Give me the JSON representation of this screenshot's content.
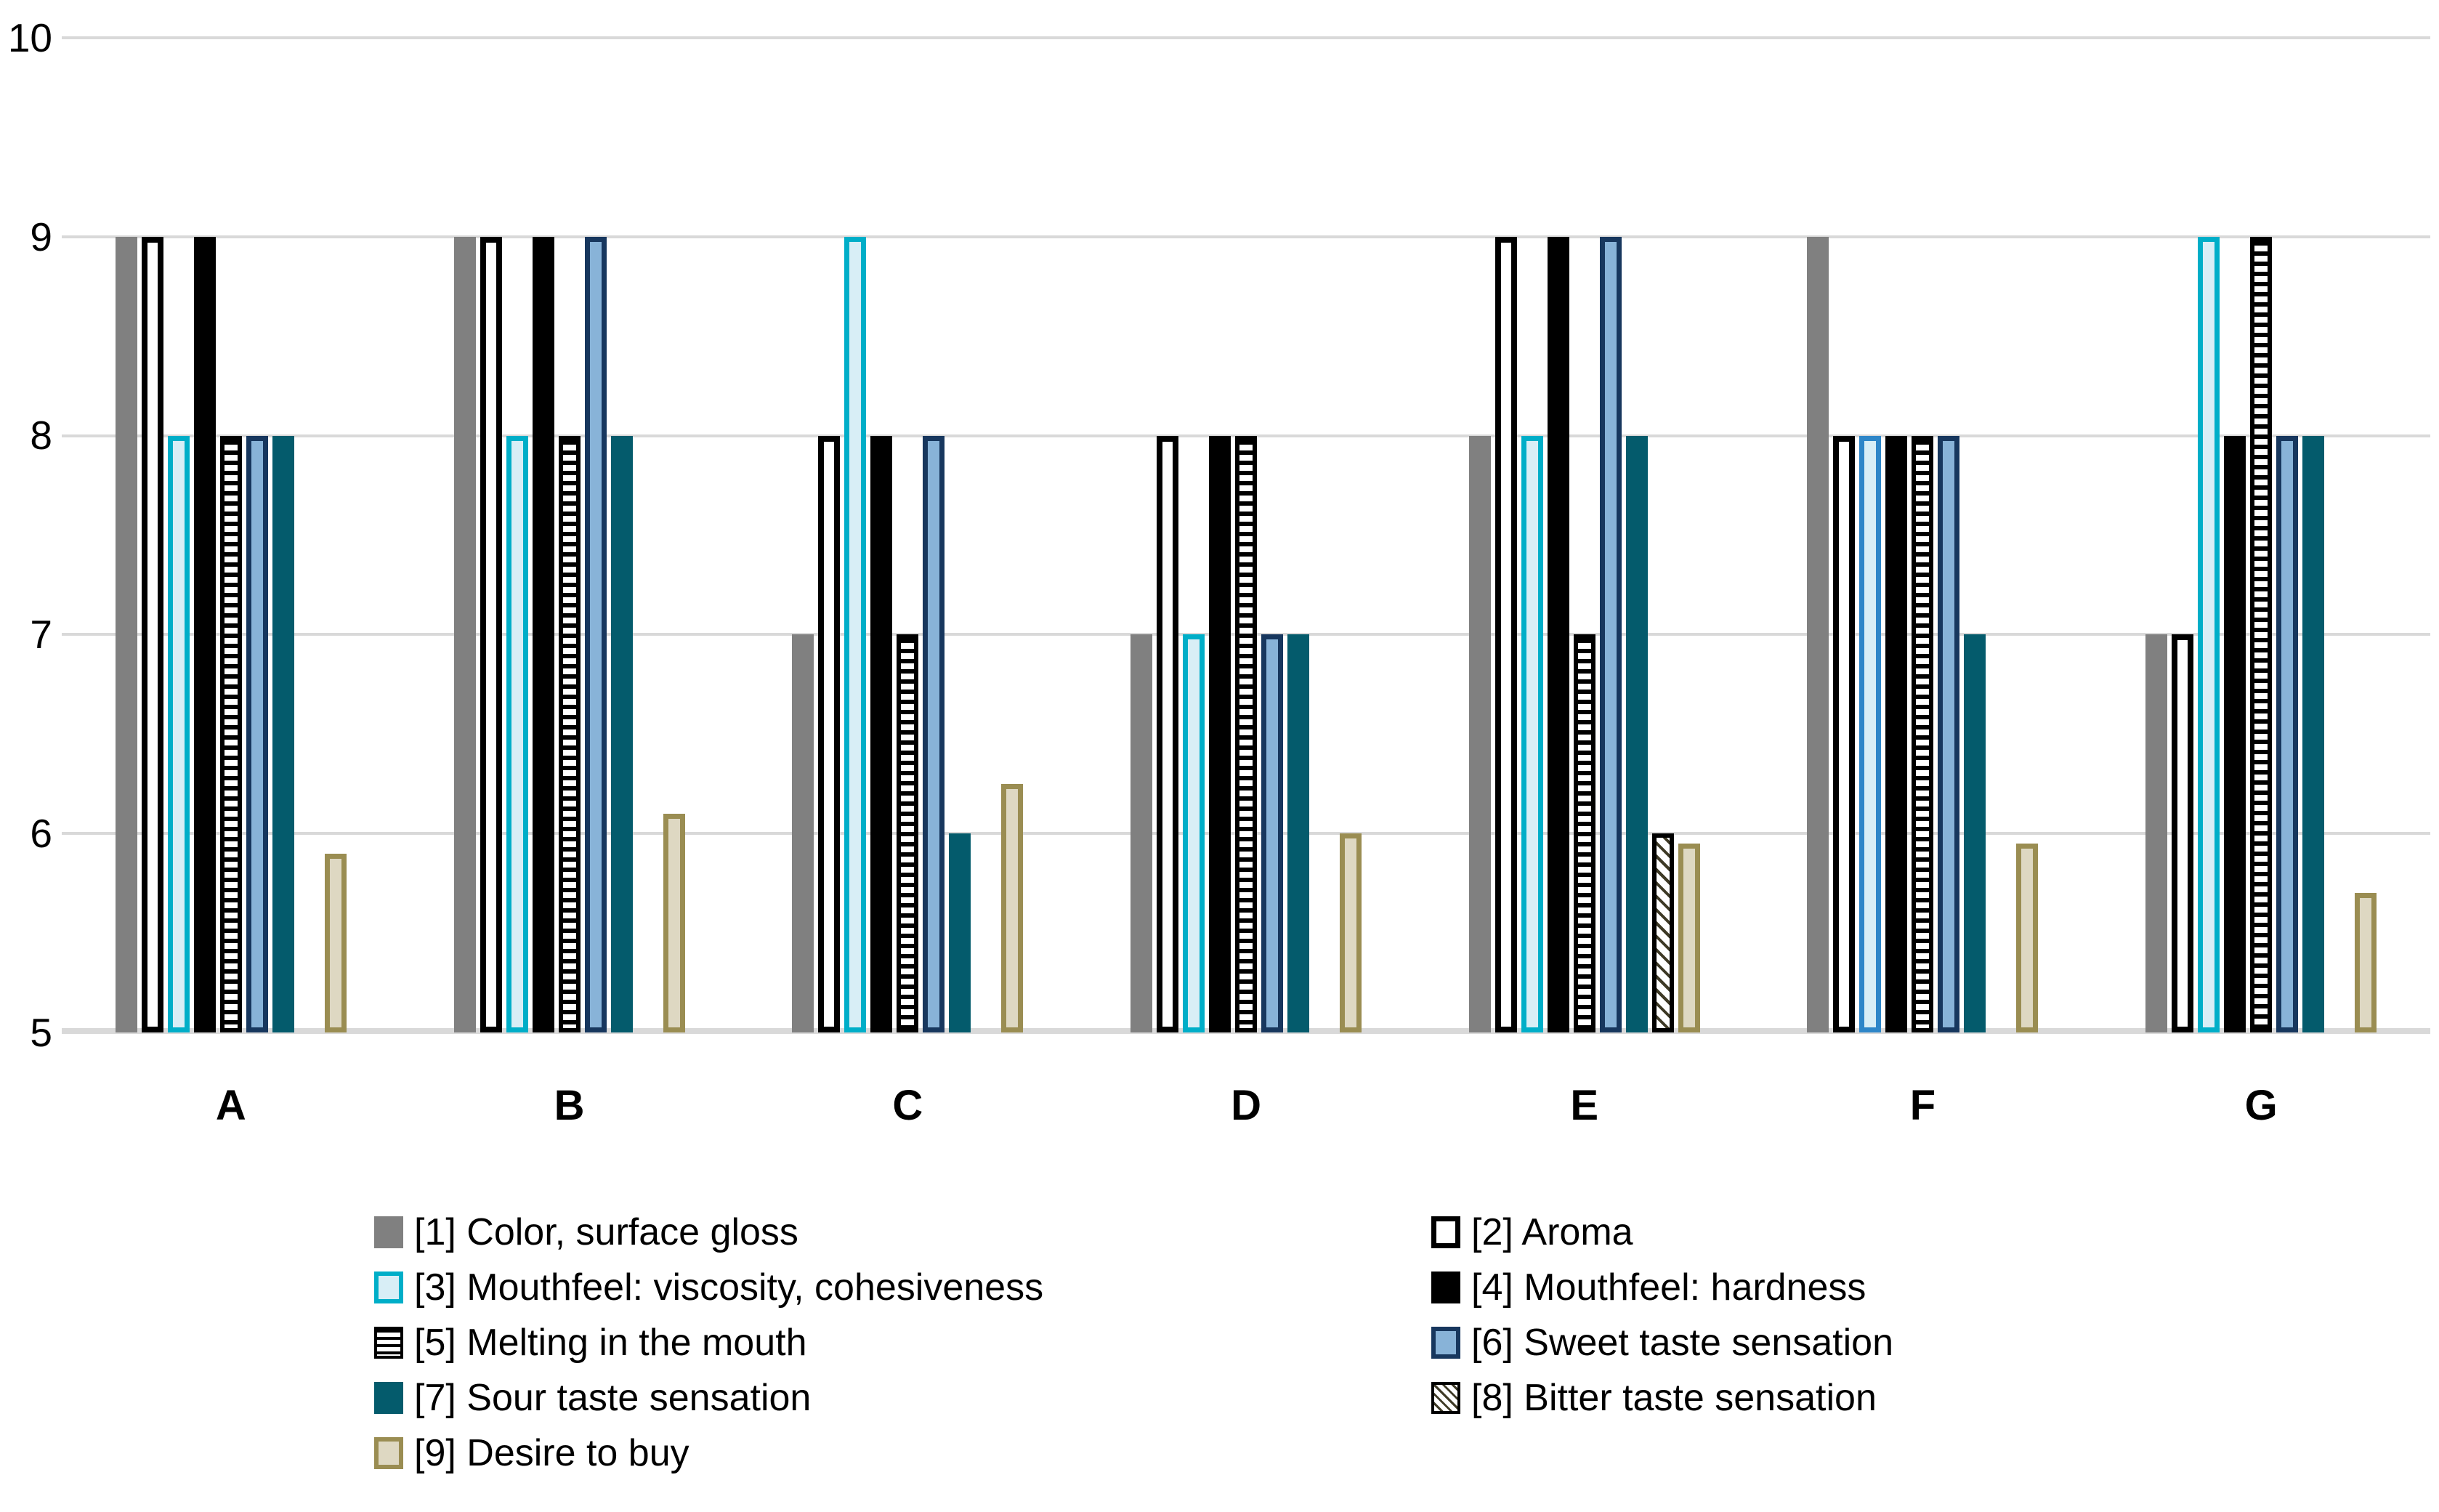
{
  "chart_data": {
    "type": "bar",
    "categories": [
      "A",
      "B",
      "C",
      "D",
      "E",
      "F",
      "G"
    ],
    "series": [
      {
        "key": "1",
        "label": "[1] Color, surface gloss",
        "style": "gray",
        "values": [
          9,
          9,
          7,
          7,
          8,
          9,
          7
        ]
      },
      {
        "key": "2",
        "label": "[2] Aroma",
        "style": "white-outline",
        "values": [
          9,
          9,
          8,
          8,
          9,
          8,
          7
        ]
      },
      {
        "key": "3",
        "label": "[3] Mouthfeel: viscosity, cohesiveness",
        "style": "cyan-outline",
        "values": [
          8,
          8,
          9,
          7,
          8,
          8,
          9
        ],
        "overrides": {
          "5": {
            "border": "#2E86C8"
          }
        }
      },
      {
        "key": "4",
        "label": "[4] Mouthfeel: hardness",
        "style": "black",
        "values": [
          9,
          9,
          8,
          8,
          9,
          8,
          8
        ]
      },
      {
        "key": "5",
        "label": "[5] Melting in the mouth",
        "style": "h-stripes",
        "values": [
          8,
          8,
          7,
          8,
          7,
          8,
          9
        ]
      },
      {
        "key": "6",
        "label": "[6] Sweet taste sensation",
        "style": "blue",
        "values": [
          8,
          9,
          8,
          7,
          9,
          8,
          8
        ]
      },
      {
        "key": "7",
        "label": "[7] Sour taste sensation",
        "style": "teal",
        "values": [
          8,
          8,
          6,
          7,
          8,
          7,
          8
        ]
      },
      {
        "key": "8",
        "label": "[8] Bitter taste sensation",
        "style": "diagonal-hatch",
        "values": [
          5,
          5,
          5,
          5,
          6,
          5,
          5
        ]
      },
      {
        "key": "9",
        "label": "[9] Desire to buy",
        "style": "tan",
        "values": [
          5.9,
          6.1,
          6.25,
          6,
          5.95,
          5.95,
          5.7
        ]
      }
    ],
    "ylim": [
      5,
      10
    ],
    "yticks": [
      "10",
      "9",
      "8",
      "7",
      "6",
      "5"
    ],
    "grid": true,
    "legend_position": "bottom",
    "legend_columns": {
      "left": [
        "1",
        "3",
        "5",
        "7",
        "9"
      ],
      "right": [
        "2",
        "4",
        "6",
        "8"
      ]
    }
  },
  "colors": {
    "gray": "#808080",
    "black": "#000000",
    "white": "#FFFFFF",
    "cyan_border": "#00AEC8",
    "cyan_fill": "#D8EEF6",
    "cyan_border_alt_F": "#2E86C8",
    "blue_fill": "#88B3D8",
    "blue_border": "#17375E",
    "teal": "#045B6C",
    "hatch_line": "#3E3A26",
    "tan_fill": "#DED8C2",
    "tan_border": "#9A8D52",
    "gridline": "#D9D9D9"
  }
}
